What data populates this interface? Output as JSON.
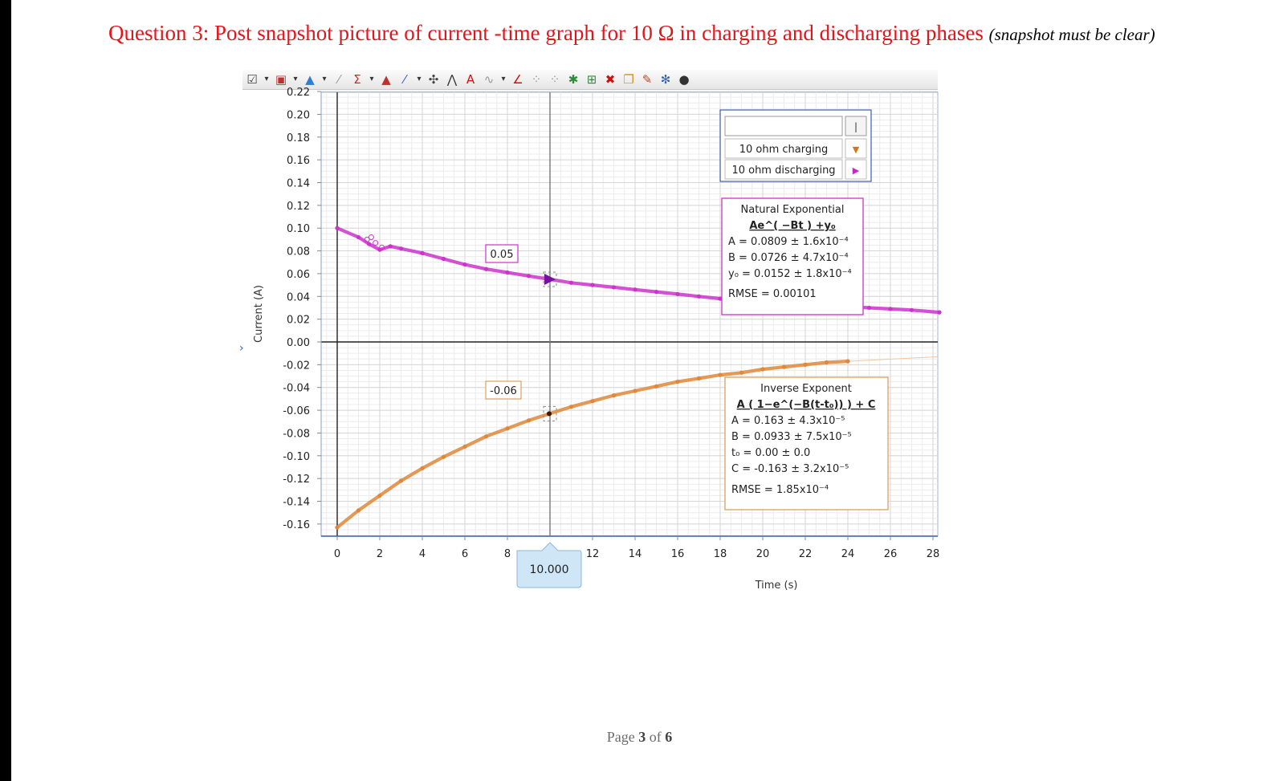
{
  "document": {
    "question": "Question 3: Post snapshot picture of current -time graph for 10 Ω in charging and discharging phases",
    "question_note": "(snapshot must be clear)",
    "page": {
      "prefix": "Page ",
      "current": "3",
      "middle": " of ",
      "total": "6"
    }
  },
  "toolbar": {
    "icons": [
      {
        "name": "graph-options-icon",
        "glyph": "☑",
        "color": "#444444"
      },
      {
        "name": "dropdown-arrow-icon",
        "glyph": "▾",
        "color": "#333333"
      },
      {
        "name": "save-icon",
        "glyph": "▣",
        "color": "#c03030"
      },
      {
        "name": "dropdown-arrow-icon",
        "glyph": "▾",
        "color": "#333333"
      },
      {
        "name": "analyze-icon",
        "glyph": "▲",
        "color": "#2f7fd0"
      },
      {
        "name": "dropdown-arrow-icon",
        "glyph": "▾",
        "color": "#333333"
      },
      {
        "name": "draw-icon",
        "glyph": "⁄",
        "color": "#999999"
      },
      {
        "name": "sigma-icon",
        "glyph": "Σ",
        "color": "#c03030"
      },
      {
        "name": "dropdown-arrow-icon",
        "glyph": "▾",
        "color": "#333333"
      },
      {
        "name": "triangle-icon",
        "glyph": "▲",
        "color": "#c03030"
      },
      {
        "name": "curve-fit-icon",
        "glyph": "⁄",
        "color": "#3060d0"
      },
      {
        "name": "dropdown-arrow-icon",
        "glyph": "▾",
        "color": "#333333"
      },
      {
        "name": "crosshair-icon",
        "glyph": "✣",
        "color": "#444444"
      },
      {
        "name": "tangent-icon",
        "glyph": "⋀",
        "color": "#333333"
      },
      {
        "name": "annotation-icon",
        "glyph": "A",
        "color": "#d01010"
      },
      {
        "name": "waveform-icon",
        "glyph": "∿",
        "color": "#999999"
      },
      {
        "name": "dropdown-arrow-icon",
        "glyph": "▾",
        "color": "#333333"
      },
      {
        "name": "line-icon",
        "glyph": "∠",
        "color": "#d01010"
      },
      {
        "name": "scatter-icon",
        "glyph": "⁘",
        "color": "#999999"
      },
      {
        "name": "scatter-alt-icon",
        "glyph": "⁘",
        "color": "#999999"
      },
      {
        "name": "add-data-icon",
        "glyph": "✱",
        "color": "#2e8b3a"
      },
      {
        "name": "select-icon",
        "glyph": "⊞",
        "color": "#2e8b3a"
      },
      {
        "name": "delete-icon",
        "glyph": "✖",
        "color": "#cc1010"
      },
      {
        "name": "duplicate-icon",
        "glyph": "❐",
        "color": "#d09020"
      },
      {
        "name": "pin-icon",
        "glyph": "✎",
        "color": "#d04020"
      },
      {
        "name": "settings-icon",
        "glyph": "✻",
        "color": "#3060b0"
      },
      {
        "name": "eye-icon",
        "glyph": "●",
        "color": "#333333"
      }
    ]
  },
  "legend": {
    "search_value": "",
    "search_button": "|",
    "items": [
      {
        "label": "10 ohm charging",
        "marker": "▼",
        "color": "#d07820"
      },
      {
        "label": "10 ohm discharging",
        "marker": "▶",
        "color": "#cc22cc"
      }
    ]
  },
  "fit_boxes": {
    "discharging": {
      "title": "Natural Exponential",
      "equation": "Ae^( −Bt ) +y₀",
      "lines": [
        "A  = 0.0809 ± 1.6x10⁻⁴",
        "B  = 0.0726 ± 4.7x10⁻⁴",
        "y₀ = 0.0152 ± 1.8x10⁻⁴"
      ],
      "rmse": "RMSE = 0.00101",
      "color": "#cc33cc"
    },
    "charging": {
      "title": "Inverse Exponent",
      "equation": "A ( 1−e^(−B(t-t₀)) ) + C",
      "lines": [
        "A  = 0.163   ± 4.3x10⁻⁵",
        "B  = 0.0933 ± 7.5x10⁻⁵",
        "t₀ = 0.00     ± 0.0",
        "C  = -0.163  ± 3.2x10⁻⁵"
      ],
      "rmse": "RMSE = 1.85x10⁻⁴",
      "color": "#d8a060"
    }
  },
  "cursor": {
    "x_readout": "10.000",
    "upper_value": "0.05",
    "lower_value": "-0.06"
  },
  "chart_data": {
    "type": "scatter",
    "xlabel": "Time (s)",
    "ylabel": "Current (A)",
    "xlim": [
      -0.5,
      28.3
    ],
    "ylim": [
      -0.17,
      0.22
    ],
    "x_ticks": [
      0,
      2,
      4,
      6,
      8,
      12,
      14,
      16,
      18,
      20,
      22,
      24,
      26,
      28
    ],
    "y_ticks": [
      0.22,
      0.2,
      0.18,
      0.16,
      0.14,
      0.12,
      0.1,
      0.08,
      0.06,
      0.04,
      0.02,
      0.0,
      -0.02,
      -0.04,
      -0.06,
      -0.08,
      -0.1,
      -0.12,
      -0.14,
      -0.16
    ],
    "series": [
      {
        "name": "10 ohm discharging",
        "color": "#cc33cc",
        "x": [
          0,
          1,
          1.5,
          2,
          2.5,
          3,
          4,
          5,
          6,
          7,
          8,
          9,
          10,
          11,
          12,
          13,
          14,
          15,
          16,
          17,
          18,
          19,
          20,
          21,
          22,
          23,
          24,
          25,
          26,
          27,
          28.3
        ],
        "y": [
          0.1,
          0.092,
          0.086,
          0.081,
          0.084,
          0.082,
          0.078,
          0.073,
          0.068,
          0.064,
          0.061,
          0.058,
          0.055,
          0.052,
          0.05,
          0.048,
          0.046,
          0.044,
          0.042,
          0.04,
          0.038,
          0.037,
          0.035,
          0.034,
          0.033,
          0.032,
          0.031,
          0.03,
          0.029,
          0.028,
          0.026
        ]
      },
      {
        "name": "10 ohm charging",
        "color": "#e0873a",
        "x": [
          0,
          1,
          2,
          3,
          4,
          5,
          6,
          7,
          8,
          9,
          10,
          11,
          12,
          13,
          14,
          15,
          16,
          17,
          18,
          19,
          20,
          21,
          22,
          23,
          24
        ],
        "y": [
          -0.163,
          -0.148,
          -0.135,
          -0.122,
          -0.111,
          -0.101,
          -0.092,
          -0.083,
          -0.076,
          -0.069,
          -0.063,
          -0.057,
          -0.052,
          -0.047,
          -0.043,
          -0.039,
          -0.035,
          -0.032,
          -0.029,
          -0.027,
          -0.024,
          -0.022,
          -0.02,
          -0.018,
          -0.017
        ]
      }
    ],
    "grid": true,
    "cursor_x": 10
  }
}
